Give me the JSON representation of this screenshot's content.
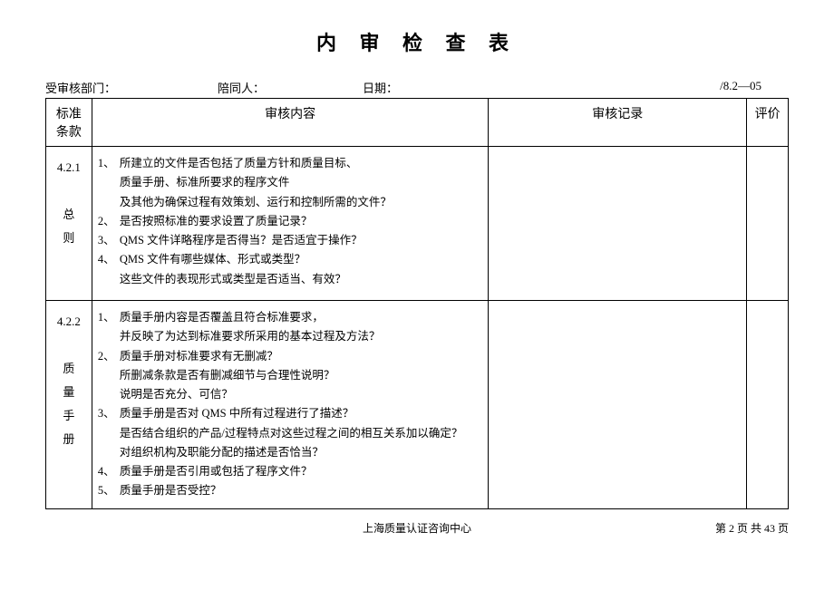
{
  "title": "内 审 检 查 表",
  "header": {
    "dept_label": "受审核部门：",
    "accompany_label": "陪同人：",
    "date_label": "日期：",
    "form_code": "/8.2—05"
  },
  "columns": {
    "standard": "标准条款",
    "content": "审核内容",
    "record": "审核记录",
    "eval": "评价"
  },
  "rows": [
    {
      "clause": "4.2.1",
      "clause_name": "总则",
      "items": [
        {
          "n": "1、",
          "t": "所建立的文件是否包括了质量方针和质量目标、",
          "sub": [
            "质量手册、标准所要求的程序文件",
            "及其他为确保过程有效策划、运行和控制所需的文件？"
          ]
        },
        {
          "n": "2、",
          "t": "是否按照标准的要求设置了质量记录？"
        },
        {
          "n": "3、",
          "t": "QMS 文件详略程序是否得当？是否适宜于操作？"
        },
        {
          "n": "4、",
          "t": "QMS 文件有哪些媒体、形式或类型？",
          "sub": [
            "这些文件的表现形式或类型是否适当、有效？"
          ]
        }
      ]
    },
    {
      "clause": "4.2.2",
      "clause_name": "质量手册",
      "items": [
        {
          "n": "1、",
          "t": "质量手册内容是否覆盖且符合标准要求，",
          "sub": [
            "并反映了为达到标准要求所采用的基本过程及方法？"
          ]
        },
        {
          "n": "2、",
          "t": "质量手册对标准要求有无删减？",
          "sub": [
            "所删减条款是否有删减细节与合理性说明？",
            "说明是否充分、可信？"
          ]
        },
        {
          "n": "3、",
          "t": "质量手册是否对 QMS 中所有过程进行了描述？",
          "sub": [
            "是否结合组织的产品/过程特点对这些过程之间的相互关系加以确定？",
            "对组织机构及职能分配的描述是否恰当？"
          ]
        },
        {
          "n": "4、",
          "t": "质量手册是否引用或包括了程序文件？"
        },
        {
          "n": "5、",
          "t": "质量手册是否受控？"
        }
      ]
    }
  ],
  "footer": {
    "center": "上海质量认证咨询中心",
    "right": "第 2 页 共 43 页"
  }
}
